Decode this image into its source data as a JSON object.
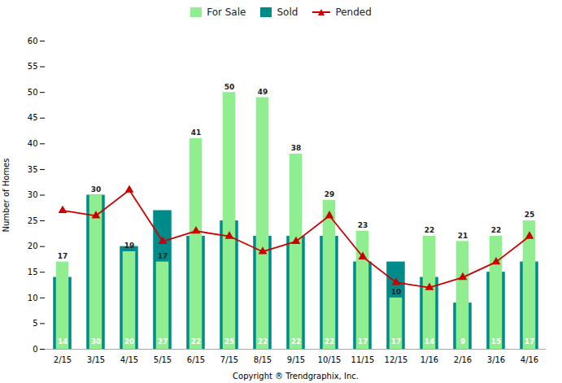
{
  "chart_data": {
    "type": "bar",
    "categories": [
      "2/15",
      "3/15",
      "4/15",
      "5/15",
      "6/15",
      "7/15",
      "8/15",
      "9/15",
      "10/15",
      "11/15",
      "12/15",
      "1/16",
      "2/16",
      "3/16",
      "4/16"
    ],
    "series": [
      {
        "name": "For Sale",
        "type": "bar",
        "color": "#90EE90",
        "data_labels": true,
        "values": [
          17,
          30,
          19,
          17,
          41,
          50,
          49,
          38,
          29,
          23,
          10,
          22,
          21,
          22,
          25
        ]
      },
      {
        "name": "Sold",
        "type": "bar",
        "color": "#008B8B",
        "data_labels": true,
        "values": [
          14,
          30,
          20,
          27,
          22,
          25,
          22,
          22,
          22,
          17,
          17,
          14,
          9,
          15,
          17
        ]
      },
      {
        "name": "Pended",
        "type": "line",
        "color": "#CC0000",
        "marker": "triangle",
        "data_labels": false,
        "values": [
          27,
          26,
          31,
          21,
          23,
          22,
          19,
          21,
          26,
          18,
          13,
          12,
          14,
          17,
          22
        ]
      }
    ],
    "ylabel": "Number of Homes",
    "xlabel": "Copyright ® Trendgraphix, Inc.",
    "ylim": [
      0,
      60
    ],
    "yticks": [
      0,
      5,
      10,
      15,
      20,
      25,
      30,
      35,
      40,
      45,
      50,
      55,
      60
    ],
    "grid": false,
    "legend": "top"
  }
}
